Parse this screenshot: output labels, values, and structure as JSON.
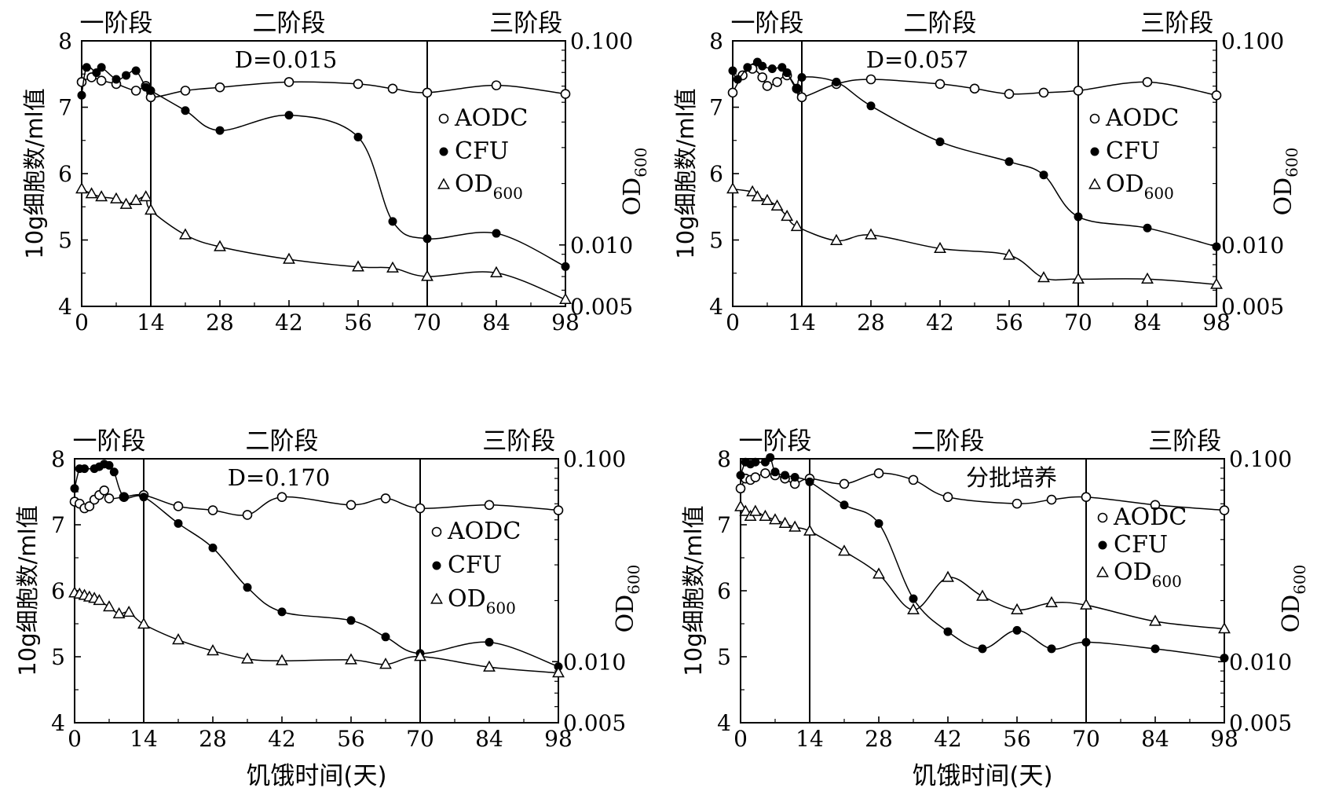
{
  "figure": {
    "xlabel": "饥饿时间(天)",
    "ylabel_left": "10g细胞数/ml值",
    "ylabel_right_main": "OD",
    "ylabel_right_sub": "600",
    "legend": [
      {
        "label": "AODC",
        "sub": "",
        "marker": "open-circle"
      },
      {
        "label": "CFU",
        "sub": "",
        "marker": "filled-circle"
      },
      {
        "label": "OD",
        "sub": "600",
        "marker": "open-triangle"
      }
    ],
    "stages": [
      "一阶段",
      "二阶段",
      "三阶段"
    ],
    "stage_dividers_days": [
      14,
      70
    ],
    "colors": {
      "ink": "#000000",
      "background": "#ffffff"
    }
  },
  "chart_data": [
    {
      "type": "line",
      "title": "D=0.015",
      "xlabel": "",
      "ylabel": "10g细胞数/ml值",
      "y2label": "OD600",
      "xlim": [
        0,
        98
      ],
      "ylim": [
        4,
        8
      ],
      "y2lim": [
        0.005,
        0.1
      ],
      "y2scale": "log",
      "xticks": [
        "0",
        "14",
        "28",
        "42",
        "56",
        "70",
        "84",
        "98"
      ],
      "yticks": [
        "4",
        "5",
        "6",
        "7",
        "8"
      ],
      "y2ticks": [
        "0.005",
        "0.010",
        "0.100"
      ],
      "series": [
        {
          "name": "AODC",
          "marker": "open-circle",
          "axis": "left",
          "x": [
            0,
            2,
            4,
            7,
            11,
            13,
            14,
            21,
            28,
            42,
            56,
            63,
            70,
            84,
            98
          ],
          "y": [
            7.38,
            7.45,
            7.4,
            7.35,
            7.25,
            7.32,
            7.15,
            7.25,
            7.3,
            7.38,
            7.35,
            7.28,
            7.22,
            7.33,
            7.2
          ]
        },
        {
          "name": "CFU",
          "marker": "filled-circle",
          "axis": "left",
          "x": [
            0,
            1,
            3,
            4,
            7,
            9,
            11,
            13,
            14,
            21,
            28,
            42,
            56,
            63,
            70,
            84,
            98
          ],
          "y": [
            7.18,
            7.6,
            7.52,
            7.6,
            7.42,
            7.48,
            7.55,
            7.3,
            7.25,
            6.95,
            6.65,
            6.88,
            6.55,
            5.28,
            5.02,
            5.1,
            4.6
          ]
        },
        {
          "name": "OD600",
          "marker": "open-triangle",
          "axis": "right",
          "x": [
            0,
            2,
            4,
            7,
            9,
            11,
            13,
            14,
            21,
            28,
            42,
            56,
            63,
            70,
            84,
            98
          ],
          "y": [
            0.0188,
            0.0178,
            0.0172,
            0.0168,
            0.0158,
            0.0165,
            0.0172,
            0.0148,
            0.0112,
            0.0098,
            0.0085,
            0.0078,
            0.0077,
            0.007,
            0.0073,
            0.0054
          ]
        }
      ]
    },
    {
      "type": "line",
      "title": "D=0.057",
      "xlabel": "",
      "ylabel": "10g细胞数/ml值",
      "y2label": "OD600",
      "xlim": [
        0,
        98
      ],
      "ylim": [
        4,
        8
      ],
      "y2lim": [
        0.005,
        0.1
      ],
      "y2scale": "log",
      "xticks": [
        "0",
        "14",
        "28",
        "42",
        "56",
        "70",
        "84",
        "98"
      ],
      "yticks": [
        "4",
        "5",
        "6",
        "7",
        "8"
      ],
      "y2ticks": [
        "0.005",
        "0.010",
        "0.100"
      ],
      "series": [
        {
          "name": "AODC",
          "marker": "open-circle",
          "axis": "left",
          "x": [
            0,
            2,
            4,
            6,
            7,
            9,
            11,
            13,
            14,
            21,
            28,
            42,
            49,
            56,
            63,
            70,
            84,
            98
          ],
          "y": [
            7.22,
            7.48,
            7.58,
            7.45,
            7.32,
            7.38,
            7.48,
            7.28,
            7.15,
            7.35,
            7.42,
            7.35,
            7.28,
            7.2,
            7.22,
            7.25,
            7.38,
            7.18
          ]
        },
        {
          "name": "CFU",
          "marker": "filled-circle",
          "axis": "left",
          "x": [
            0,
            1,
            3,
            5,
            6,
            8,
            10,
            11,
            13,
            14,
            21,
            28,
            42,
            56,
            63,
            70,
            84,
            98
          ],
          "y": [
            7.55,
            7.42,
            7.6,
            7.68,
            7.62,
            7.58,
            7.6,
            7.52,
            7.28,
            7.45,
            7.38,
            7.02,
            6.48,
            6.18,
            5.98,
            5.35,
            5.18,
            4.9
          ]
        },
        {
          "name": "OD600",
          "marker": "open-triangle",
          "axis": "right",
          "x": [
            0,
            4,
            5,
            7,
            9,
            11,
            13,
            21,
            28,
            42,
            56,
            63,
            70,
            84,
            98
          ],
          "y": [
            0.0188,
            0.0182,
            0.0172,
            0.0165,
            0.0155,
            0.0138,
            0.0123,
            0.0105,
            0.0112,
            0.0096,
            0.0089,
            0.0069,
            0.0068,
            0.0068,
            0.0064
          ]
        }
      ]
    },
    {
      "type": "line",
      "title": "D=0.170",
      "xlabel": "饥饿时间(天)",
      "ylabel": "10g细胞数/ml值",
      "y2label": "OD600",
      "xlim": [
        0,
        98
      ],
      "ylim": [
        4,
        8
      ],
      "y2lim": [
        0.005,
        0.1
      ],
      "y2scale": "log",
      "xticks": [
        "0",
        "14",
        "28",
        "42",
        "56",
        "70",
        "84",
        "98"
      ],
      "yticks": [
        "4",
        "5",
        "6",
        "7",
        "8"
      ],
      "y2ticks": [
        "0.005",
        "0.010",
        "0.100"
      ],
      "series": [
        {
          "name": "AODC",
          "marker": "open-circle",
          "axis": "left",
          "x": [
            0,
            1,
            2,
            3,
            4,
            5,
            6,
            7,
            10,
            14,
            21,
            28,
            35,
            42,
            56,
            63,
            70,
            84,
            98
          ],
          "y": [
            7.35,
            7.32,
            7.25,
            7.28,
            7.38,
            7.45,
            7.52,
            7.4,
            7.42,
            7.45,
            7.28,
            7.22,
            7.15,
            7.42,
            7.3,
            7.4,
            7.25,
            7.3,
            7.22
          ]
        },
        {
          "name": "CFU",
          "marker": "filled-circle",
          "axis": "left",
          "x": [
            0,
            1,
            2,
            4,
            5,
            6,
            7,
            8,
            10,
            14,
            21,
            28,
            35,
            42,
            56,
            63,
            70,
            84,
            98
          ],
          "y": [
            7.55,
            7.85,
            7.85,
            7.85,
            7.88,
            7.92,
            7.9,
            7.8,
            7.42,
            7.42,
            7.02,
            6.65,
            6.05,
            5.68,
            5.55,
            5.3,
            5.05,
            5.22,
            4.85
          ]
        },
        {
          "name": "OD600",
          "marker": "open-triangle",
          "axis": "right",
          "x": [
            0,
            1,
            2,
            3,
            4,
            5,
            7,
            9,
            11,
            14,
            21,
            28,
            35,
            42,
            56,
            63,
            70,
            84,
            98
          ],
          "y": [
            0.0218,
            0.0215,
            0.0212,
            0.0208,
            0.0205,
            0.02,
            0.0186,
            0.0172,
            0.0175,
            0.0153,
            0.0128,
            0.0113,
            0.0103,
            0.0101,
            0.0102,
            0.0097,
            0.0106,
            0.0094,
            0.0088
          ]
        }
      ]
    },
    {
      "type": "line",
      "title": "分批培养",
      "xlabel": "饥饿时间(天)",
      "ylabel": "10g细胞数/ml值",
      "y2label": "OD600",
      "xlim": [
        0,
        98
      ],
      "ylim": [
        4,
        8
      ],
      "y2lim": [
        0.005,
        0.1
      ],
      "y2scale": "log",
      "xticks": [
        "0",
        "14",
        "28",
        "42",
        "56",
        "70",
        "84",
        "98"
      ],
      "yticks": [
        "4",
        "5",
        "6",
        "7",
        "8"
      ],
      "y2ticks": [
        "0.005",
        "0.010",
        "0.100"
      ],
      "series": [
        {
          "name": "AODC",
          "marker": "open-circle",
          "axis": "left",
          "x": [
            0,
            1,
            2,
            3,
            5,
            7,
            9,
            11,
            14,
            21,
            28,
            35,
            42,
            56,
            63,
            70,
            84,
            98
          ],
          "y": [
            7.55,
            7.7,
            7.68,
            7.72,
            7.78,
            7.75,
            7.7,
            7.62,
            7.7,
            7.62,
            7.78,
            7.68,
            7.42,
            7.32,
            7.38,
            7.42,
            7.3,
            7.22
          ]
        },
        {
          "name": "CFU",
          "marker": "filled-circle",
          "axis": "left",
          "x": [
            0,
            1,
            2,
            3,
            5,
            6,
            7,
            9,
            11,
            14,
            21,
            28,
            35,
            42,
            49,
            56,
            63,
            70,
            84,
            98
          ],
          "y": [
            7.75,
            7.95,
            7.92,
            7.95,
            7.95,
            8.02,
            7.8,
            7.75,
            7.72,
            7.65,
            7.3,
            7.02,
            5.88,
            5.38,
            5.12,
            5.4,
            5.12,
            5.22,
            5.12,
            4.98
          ]
        },
        {
          "name": "OD600",
          "marker": "open-triangle",
          "axis": "right",
          "x": [
            0,
            1,
            2,
            3,
            5,
            7,
            9,
            11,
            14,
            21,
            28,
            35,
            42,
            49,
            56,
            63,
            70,
            84,
            98
          ],
          "y": [
            0.058,
            0.055,
            0.052,
            0.055,
            0.052,
            0.05,
            0.048,
            0.046,
            0.044,
            0.035,
            0.027,
            0.018,
            0.026,
            0.021,
            0.018,
            0.0195,
            0.019,
            0.0158,
            0.0145
          ]
        }
      ]
    }
  ]
}
